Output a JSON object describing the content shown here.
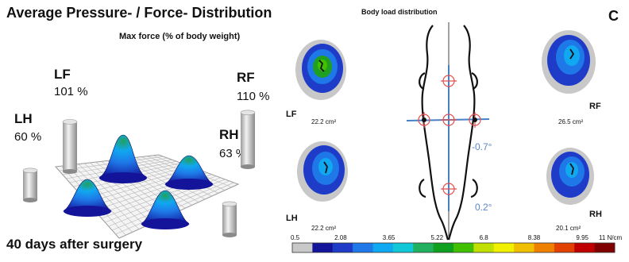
{
  "header": {
    "title": "Average Pressure- / Force- Distribution",
    "subtitle": "Max force (% of body weight)",
    "footer": "40 days after surgery"
  },
  "panel_letter": "C",
  "right_title": "Body load distribution",
  "colors": {
    "scale": [
      "#c8c8c8",
      "#14149a",
      "#1e3cc8",
      "#1e78e8",
      "#10a8f0",
      "#10c8d8",
      "#20b060",
      "#10a020",
      "#40c000",
      "#c0e000",
      "#f0f000",
      "#f0c000",
      "#f08000",
      "#e04000",
      "#c00000",
      "#800000"
    ],
    "blob_outer": "#c8c8c8",
    "blob_mid": "#1e3cc8",
    "blob_inner": "#1e78e8",
    "blob_core": "#10a8f0",
    "blob_hot": "#20a020",
    "angle_text": "#5b87c5",
    "marker": "#e05050"
  },
  "chart_data": [
    {
      "type": "bar",
      "title": "Max force (% of body weight)",
      "categories": [
        "LF",
        "RF",
        "LH",
        "RH"
      ],
      "values": [
        101,
        110,
        60,
        63
      ],
      "unit": "%",
      "value_labels": [
        "101 %",
        "110 %",
        "60 %",
        "63 %"
      ]
    },
    {
      "type": "heatmap",
      "title": "Body load distribution",
      "colorbar": {
        "unit": "N/cm",
        "ticks": [
          0.5,
          2.08,
          3.65,
          5.22,
          6.8,
          8.38,
          9.95,
          11
        ],
        "tick_labels": [
          "0.5",
          "2.08",
          "3.65",
          "5.22",
          "6.8",
          "8.38",
          "9.95",
          "11 N/cm"
        ]
      },
      "paws": [
        {
          "name": "LF",
          "area": "22.2 cm²"
        },
        {
          "name": "RF",
          "area": "26.5 cm²"
        },
        {
          "name": "LH",
          "area": "22.2 cm²"
        },
        {
          "name": "RH",
          "area": "20.1 cm²"
        }
      ],
      "angles": [
        "-0.7°",
        "0.2°"
      ]
    }
  ]
}
